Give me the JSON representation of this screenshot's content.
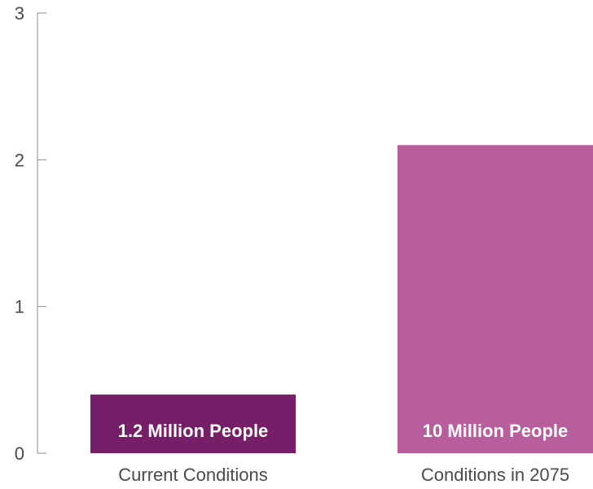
{
  "chart_data": {
    "type": "bar",
    "categories": [
      "Current Conditions",
      "Conditions in 2075"
    ],
    "values": [
      0.4,
      2.1
    ],
    "data_labels": [
      "1.2 Million People",
      "10 Million People"
    ],
    "colors": [
      "#761f68",
      "#b85e9c"
    ],
    "ylim": [
      0,
      3
    ],
    "yticks": [
      "0",
      "1",
      "2",
      "3"
    ],
    "title": "",
    "xlabel": "",
    "ylabel": "",
    "grid": false,
    "legend": "none"
  },
  "colors": {
    "axis": "#8c8c8c",
    "text": "#4a4a4a"
  }
}
